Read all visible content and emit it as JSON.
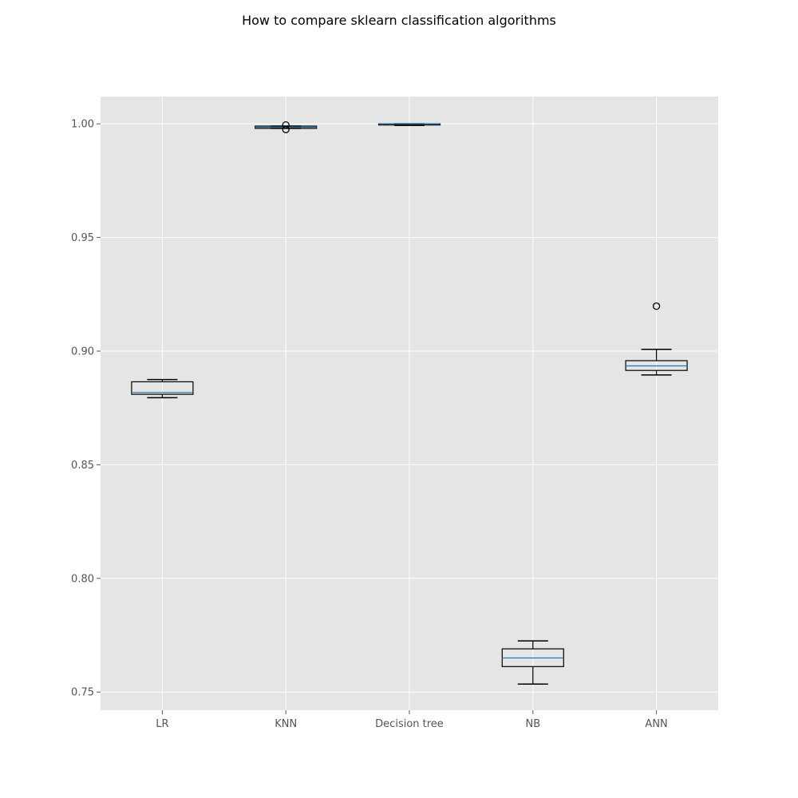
{
  "chart_data": {
    "type": "box",
    "title": "How to compare sklearn classification algorithms",
    "xlabel": "",
    "ylabel": "",
    "ylim": [
      0.742,
      1.012
    ],
    "yticks": [
      "0.75",
      "0.80",
      "0.85",
      "0.90",
      "0.95",
      "1.00"
    ],
    "grid": true,
    "categories": [
      "LR",
      "KNN",
      "Decision tree",
      "NB",
      "ANN"
    ],
    "boxes": [
      {
        "label": "LR",
        "whisker_low": 0.8795,
        "q1": 0.881,
        "median": 0.8818,
        "q3": 0.8865,
        "whisker_high": 0.8875,
        "outliers": []
      },
      {
        "label": "KNN",
        "whisker_low": 0.998,
        "q1": 0.998,
        "median": 0.9985,
        "q3": 0.999,
        "whisker_high": 0.999,
        "outliers": [
          0.9975,
          0.9995
        ]
      },
      {
        "label": "Decision tree",
        "whisker_low": 0.9993,
        "q1": 0.9995,
        "median": 1.0,
        "q3": 1.0,
        "whisker_high": 1.0,
        "outliers": []
      },
      {
        "label": "NB",
        "whisker_low": 0.7535,
        "q1": 0.7612,
        "median": 0.765,
        "q3": 0.769,
        "whisker_high": 0.7725,
        "outliers": []
      },
      {
        "label": "ANN",
        "whisker_low": 0.8895,
        "q1": 0.8915,
        "median": 0.8935,
        "q3": 0.8958,
        "whisker_high": 0.9008,
        "outliers": [
          0.9198
        ]
      }
    ],
    "colors": {
      "plot_background": "#e5e5e5",
      "grid": "#ffffff",
      "box": "#000000",
      "median": "#1f77b4"
    }
  }
}
